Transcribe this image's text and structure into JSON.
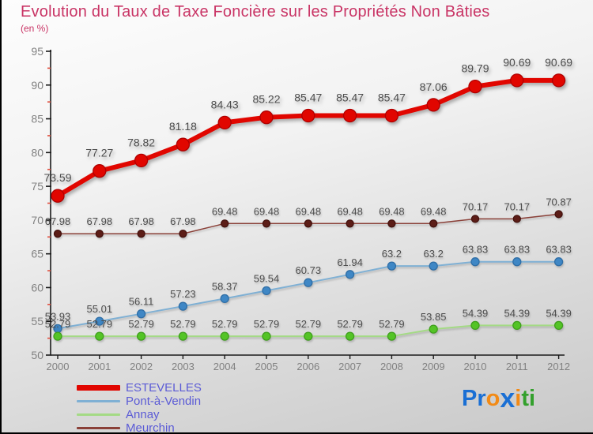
{
  "chart_data": {
    "type": "line",
    "title": "Evolution du Taux de Taxe Foncière sur les Propriétés Non Bâties",
    "subtitle": "(en %)",
    "x": [
      "2000",
      "2001",
      "2002",
      "2003",
      "2004",
      "2005",
      "2006",
      "2007",
      "2008",
      "2009",
      "2010",
      "2011",
      "2012"
    ],
    "xlabel": "",
    "ylabel": "",
    "ylim": [
      50,
      95
    ],
    "ytick_step": 5,
    "grid": false,
    "legend_position": "bottom-left",
    "axis_color": "#1a1a1a",
    "tick_label_color": "#818181",
    "minor_tick_color": "#e05040",
    "data_label_color": "#4d4d4d",
    "series": [
      {
        "name": "ESTEVELLES",
        "slug": "estevelles",
        "thick": true,
        "line_color": "#e10600",
        "marker_color": "#e10600",
        "marker_edge": "#b00000",
        "line_width": 6,
        "marker_radius": 8,
        "label_offset": 18,
        "label_size": 14,
        "values": [
          73.59,
          77.27,
          78.82,
          81.18,
          84.43,
          85.22,
          85.47,
          85.47,
          85.47,
          87.06,
          89.79,
          90.69,
          90.69
        ]
      },
      {
        "name": "Pont-à-Vendin",
        "slug": "pont-a-vendin",
        "thick": false,
        "line_color": "#7fb0d4",
        "marker_color": "#3f87c5",
        "marker_edge": "#2f6ea6",
        "line_width": 2,
        "marker_radius": 5,
        "label_offset": 11,
        "label_size": 13,
        "values": [
          53.93,
          55.01,
          56.11,
          57.23,
          58.37,
          59.54,
          60.73,
          61.94,
          63.2,
          63.2,
          63.83,
          63.83,
          63.83
        ]
      },
      {
        "name": "Annay",
        "slug": "annay",
        "thick": false,
        "line_color": "#a4da85",
        "marker_color": "#54c426",
        "marker_edge": "#3f9e1d",
        "line_width": 2,
        "marker_radius": 5,
        "label_offset": 11,
        "label_size": 13,
        "values": [
          52.79,
          52.79,
          52.79,
          52.79,
          52.79,
          52.79,
          52.79,
          52.79,
          52.79,
          53.85,
          54.39,
          54.39,
          54.39
        ]
      },
      {
        "name": "Meurchin",
        "slug": "meurchin",
        "thick": false,
        "line_color": "#8a4038",
        "marker_color": "#5c1d17",
        "marker_edge": "#43110d",
        "line_width": 1.5,
        "marker_radius": 4.5,
        "label_offset": 11,
        "label_size": 13,
        "values": [
          67.98,
          67.98,
          67.98,
          67.98,
          69.48,
          69.48,
          69.48,
          69.48,
          69.48,
          69.48,
          70.17,
          70.17,
          70.87
        ]
      }
    ]
  },
  "logo": {
    "name": "Proxiti",
    "letters": [
      {
        "ch": "P",
        "color": "#1a6fd4",
        "big": false
      },
      {
        "ch": "r",
        "color": "#1a6fd4",
        "big": false
      },
      {
        "ch": "o",
        "color": "#f28a15",
        "big": false
      },
      {
        "ch": "x",
        "color": "#1a6fd4",
        "big": true
      },
      {
        "ch": "i",
        "color": "#f28a15",
        "big": false
      },
      {
        "ch": "t",
        "color": "#33a02c",
        "big": false
      },
      {
        "ch": "i",
        "color": "#33a02c",
        "big": false
      }
    ]
  }
}
